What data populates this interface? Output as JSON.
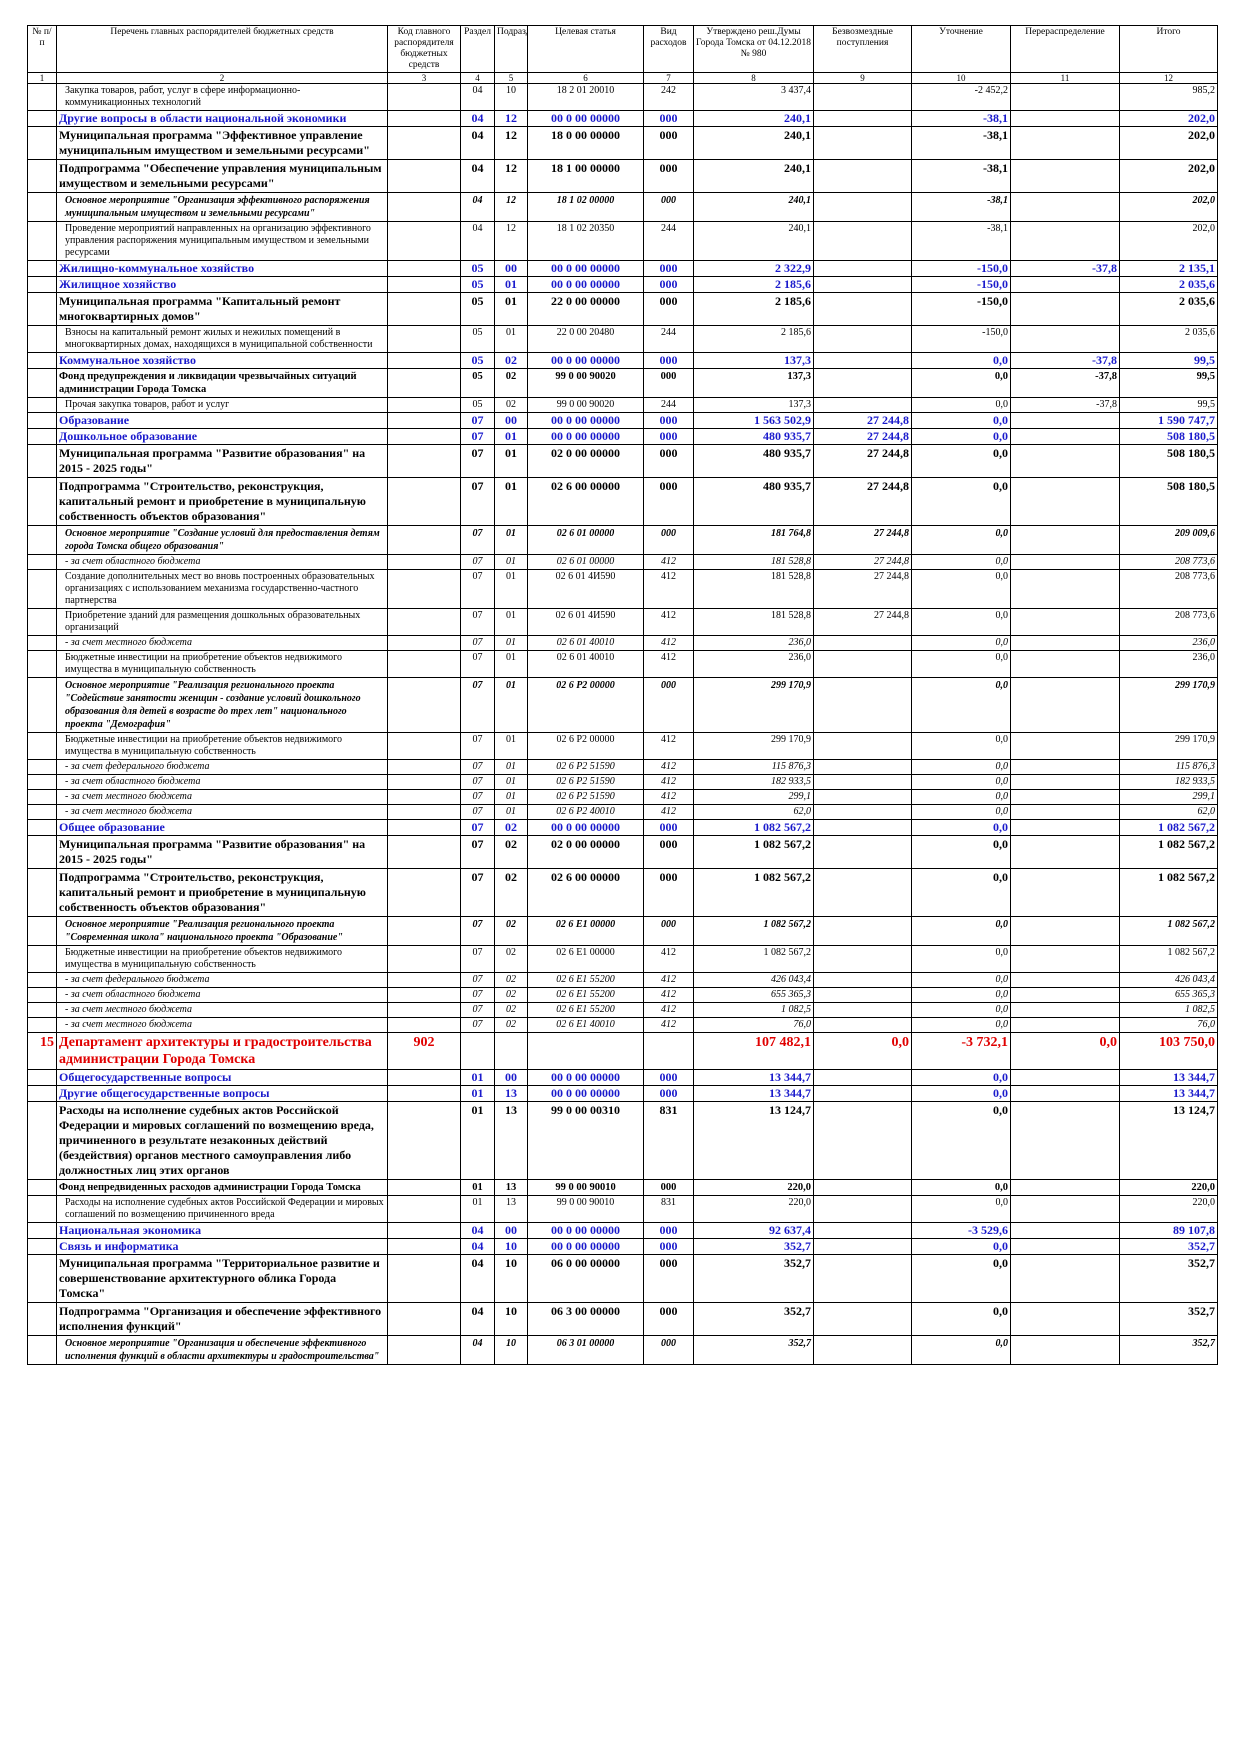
{
  "table": {
    "header": [
      "№ п/п",
      "Перечень главных распорядителей бюджетных средств",
      "Код главного распорядителя бюджетных средств",
      "Раздел",
      "Подраздел",
      "Целевая статья",
      "Вид расходов",
      "Утверждено реш.Думы Города Томска от 04.12.2018 № 980",
      "Безвозмездные поступления",
      "Уточнение",
      "Перераспределение",
      "Итого"
    ],
    "numbers": [
      1,
      2,
      3,
      4,
      5,
      6,
      7,
      8,
      9,
      10,
      11,
      12
    ],
    "rows": [
      {
        "style": "n",
        "cells": [
          null,
          "Закупка товаров, работ, услуг в сфере информационно-коммуникационных технологий",
          null,
          "04",
          "10",
          "18 2 01 20010",
          "242",
          "3 437,4",
          null,
          "-2 452,2",
          null,
          "985,2"
        ]
      },
      {
        "style": "s",
        "cells": [
          null,
          "Другие вопросы в области национальной экономики",
          null,
          "04",
          "12",
          "00 0 00 00000",
          "000",
          "240,1",
          null,
          "-38,1",
          null,
          "202,0"
        ]
      },
      {
        "style": "b",
        "cells": [
          null,
          "Муниципальная программа \"Эффективное управление муниципальным имуществом и земельными ресурсами\"",
          null,
          "04",
          "12",
          "18 0 00 00000",
          "000",
          "240,1",
          null,
          "-38,1",
          null,
          "202,0"
        ]
      },
      {
        "style": "b",
        "cells": [
          null,
          "Подпрограмма \"Обеспечение управления муниципальным имуществом и земельными ресурсами\"",
          null,
          "04",
          "12",
          "18 1 00 00000",
          "000",
          "240,1",
          null,
          "-38,1",
          null,
          "202,0"
        ]
      },
      {
        "style": "m",
        "cells": [
          null,
          "Основное мероприятие \"Организация эффективного распоряжения муниципальным имуществом и земельными ресурсами\"",
          null,
          "04",
          "12",
          "18 1 02 00000",
          "000",
          "240,1",
          null,
          "-38,1",
          null,
          "202,0"
        ]
      },
      {
        "style": "n",
        "cells": [
          null,
          "Проведение мероприятий направленных на организацию эффективного управления распоряжения муниципальным имуществом и земельными ресурсами",
          null,
          "04",
          "12",
          "18 1 02 20350",
          "244",
          "240,1",
          null,
          "-38,1",
          null,
          "202,0"
        ]
      },
      {
        "style": "s",
        "cells": [
          null,
          "Жилищно-коммунальное хозяйство",
          null,
          "05",
          "00",
          "00 0 00 00000",
          "000",
          "2 322,9",
          null,
          "-150,0",
          "-37,8",
          "2 135,1"
        ]
      },
      {
        "style": "s",
        "cells": [
          null,
          "Жилищное хозяйство",
          null,
          "05",
          "01",
          "00 0 00 00000",
          "000",
          "2 185,6",
          null,
          "-150,0",
          null,
          "2 035,6"
        ]
      },
      {
        "style": "b",
        "cells": [
          null,
          "Муниципальная программа \"Капитальный ремонт многоквартирных домов\"",
          null,
          "05",
          "01",
          "22 0 00 00000",
          "000",
          "2 185,6",
          null,
          "-150,0",
          null,
          "2 035,6"
        ]
      },
      {
        "style": "n",
        "cells": [
          null,
          "Взносы на капитальный ремонт жилых и нежилых помещений в многоквартирных домах, находящихся в муниципальной собственности",
          null,
          "05",
          "01",
          "22 0 00 20480",
          "244",
          "2 185,6",
          null,
          "-150,0",
          null,
          "2 035,6"
        ]
      },
      {
        "style": "s",
        "cells": [
          null,
          "Коммунальное хозяйство",
          null,
          "05",
          "02",
          "00 0 00 00000",
          "000",
          "137,3",
          null,
          "0,0",
          "-37,8",
          "99,5"
        ]
      },
      {
        "style": "bs",
        "cells": [
          null,
          "Фонд предупреждения и ликвидации чрезвычайных ситуаций администрации Города Томска",
          null,
          "05",
          "02",
          "99 0 00 90020",
          "000",
          "137,3",
          null,
          "0,0",
          "-37,8",
          "99,5"
        ]
      },
      {
        "style": "n",
        "cells": [
          null,
          "Прочая закупка товаров, работ и услуг",
          null,
          "05",
          "02",
          "99 0 00 90020",
          "244",
          "137,3",
          null,
          "0,0",
          "-37,8",
          "99,5"
        ]
      },
      {
        "style": "s",
        "cells": [
          null,
          "Образование",
          null,
          "07",
          "00",
          "00 0 00 00000",
          "000",
          "1 563 502,9",
          "27 244,8",
          "0,0",
          null,
          "1 590 747,7"
        ]
      },
      {
        "style": "s",
        "cells": [
          null,
          "Дошкольное образование",
          null,
          "07",
          "01",
          "00 0 00 00000",
          "000",
          "480 935,7",
          "27 244,8",
          "0,0",
          null,
          "508 180,5"
        ]
      },
      {
        "style": "b",
        "cells": [
          null,
          "Муниципальная программа \"Развитие образования\" на 2015 - 2025 годы\"",
          null,
          "07",
          "01",
          "02 0 00 00000",
          "000",
          "480 935,7",
          "27 244,8",
          "0,0",
          null,
          "508 180,5"
        ]
      },
      {
        "style": "b",
        "cells": [
          null,
          "Подпрограмма \"Строительство, реконструкция, капитальный ремонт и приобретение в муниципальную собственность объектов образования\"",
          null,
          "07",
          "01",
          "02 6 00 00000",
          "000",
          "480 935,7",
          "27 244,8",
          "0,0",
          null,
          "508 180,5"
        ]
      },
      {
        "style": "m",
        "cells": [
          null,
          "Основное мероприятие \"Создание условий для предоставления детям города Томска общего образования\"",
          null,
          "07",
          "01",
          "02 6 01 00000",
          "000",
          "181 764,8",
          "27 244,8",
          "0,0",
          null,
          "209 009,6"
        ]
      },
      {
        "style": "i",
        "cells": [
          null,
          "- за счет областного бюджета",
          null,
          "07",
          "01",
          "02 6 01 00000",
          "412",
          "181 528,8",
          "27 244,8",
          "0,0",
          null,
          "208 773,6"
        ]
      },
      {
        "style": "n",
        "cells": [
          null,
          "Создание дополнительных мест во вновь построенных образовательных организациях с использованием механизма государственно-частного партнерства",
          null,
          "07",
          "01",
          "02 6 01 4И590",
          "412",
          "181 528,8",
          "27 244,8",
          "0,0",
          null,
          "208 773,6"
        ]
      },
      {
        "style": "n",
        "cells": [
          null,
          "Приобретение зданий для размещения дошкольных образовательных организаций",
          null,
          "07",
          "01",
          "02 6 01 4И590",
          "412",
          "181 528,8",
          "27 244,8",
          "0,0",
          null,
          "208 773,6"
        ]
      },
      {
        "style": "i",
        "cells": [
          null,
          "- за счет местного бюджета",
          null,
          "07",
          "01",
          "02 6 01 40010",
          "412",
          "236,0",
          null,
          "0,0",
          null,
          "236,0"
        ]
      },
      {
        "style": "n",
        "cells": [
          null,
          "Бюджетные инвестиции на приобретение объектов недвижимого имущества в муниципальную собственность",
          null,
          "07",
          "01",
          "02 6 01 40010",
          "412",
          "236,0",
          null,
          "0,0",
          null,
          "236,0"
        ]
      },
      {
        "style": "m",
        "cells": [
          null,
          "Основное мероприятие \"Реализация регионального проекта \"Содействие занятости женщин - создание условий дошкольного образования для детей в возрасте до трех лет\" национального проекта \"Демография\"",
          null,
          "07",
          "01",
          "02 6 P2 00000",
          "000",
          "299 170,9",
          null,
          "0,0",
          null,
          "299 170,9"
        ]
      },
      {
        "style": "n",
        "cells": [
          null,
          "Бюджетные инвестиции на приобретение объектов недвижимого имущества в муниципальную собственность",
          null,
          "07",
          "01",
          "02 6 P2 00000",
          "412",
          "299 170,9",
          null,
          "0,0",
          null,
          "299 170,9"
        ]
      },
      {
        "style": "i",
        "cells": [
          null,
          "- за счет федерального бюджета",
          null,
          "07",
          "01",
          "02 6 P2 51590",
          "412",
          "115 876,3",
          null,
          "0,0",
          null,
          "115 876,3"
        ]
      },
      {
        "style": "i",
        "cells": [
          null,
          "- за счет областного бюджета",
          null,
          "07",
          "01",
          "02 6 P2 51590",
          "412",
          "182 933,5",
          null,
          "0,0",
          null,
          "182 933,5"
        ]
      },
      {
        "style": "i",
        "cells": [
          null,
          "- за счет местного бюджета",
          null,
          "07",
          "01",
          "02 6 P2 51590",
          "412",
          "299,1",
          null,
          "0,0",
          null,
          "299,1"
        ]
      },
      {
        "style": "i",
        "cells": [
          null,
          "- за счет местного бюджета",
          null,
          "07",
          "01",
          "02 6 P2 40010",
          "412",
          "62,0",
          null,
          "0,0",
          null,
          "62,0"
        ]
      },
      {
        "style": "s",
        "cells": [
          null,
          "Общее образование",
          null,
          "07",
          "02",
          "00 0 00 00000",
          "000",
          "1 082 567,2",
          null,
          "0,0",
          null,
          "1 082 567,2"
        ]
      },
      {
        "style": "b",
        "cells": [
          null,
          "Муниципальная программа \"Развитие образования\" на 2015 - 2025 годы\"",
          null,
          "07",
          "02",
          "02 0 00 00000",
          "000",
          "1 082 567,2",
          null,
          "0,0",
          null,
          "1 082 567,2"
        ]
      },
      {
        "style": "b",
        "cells": [
          null,
          "Подпрограмма \"Строительство, реконструкция, капитальный ремонт и приобретение в муниципальную собственность объектов образования\"",
          null,
          "07",
          "02",
          "02 6 00 00000",
          "000",
          "1 082 567,2",
          null,
          "0,0",
          null,
          "1 082 567,2"
        ]
      },
      {
        "style": "m",
        "cells": [
          null,
          "Основное мероприятие \"Реализация регионального проекта \"Современная школа\" национального проекта \"Образование\"",
          null,
          "07",
          "02",
          "02 6 E1 00000",
          "000",
          "1 082 567,2",
          null,
          "0,0",
          null,
          "1 082 567,2"
        ]
      },
      {
        "style": "n",
        "cells": [
          null,
          "Бюджетные инвестиции на приобретение объектов недвижимого имущества в муниципальную собственность",
          null,
          "07",
          "02",
          "02 6 E1 00000",
          "412",
          "1 082 567,2",
          null,
          "0,0",
          null,
          "1 082 567,2"
        ]
      },
      {
        "style": "i",
        "cells": [
          null,
          "- за счет федерального бюджета",
          null,
          "07",
          "02",
          "02 6 E1 55200",
          "412",
          "426 043,4",
          null,
          "0,0",
          null,
          "426 043,4"
        ]
      },
      {
        "style": "i",
        "cells": [
          null,
          "- за счет областного бюджета",
          null,
          "07",
          "02",
          "02 6 E1 55200",
          "412",
          "655 365,3",
          null,
          "0,0",
          null,
          "655 365,3"
        ]
      },
      {
        "style": "i",
        "cells": [
          null,
          "- за счет местного бюджета",
          null,
          "07",
          "02",
          "02 6 E1 55200",
          "412",
          "1 082,5",
          null,
          "0,0",
          null,
          "1 082,5"
        ]
      },
      {
        "style": "i",
        "cells": [
          null,
          "- за счет местного бюджета",
          null,
          "07",
          "02",
          "02 6 E1 40010",
          "412",
          "76,0",
          null,
          "0,0",
          null,
          "76,0"
        ]
      },
      {
        "style": "d",
        "cells": [
          "15",
          "Департамент архитектуры и градостроительства администрации Города Томска",
          "902",
          null,
          null,
          null,
          null,
          "107 482,1",
          "0,0",
          "-3 732,1",
          "0,0",
          "103 750,0"
        ]
      },
      {
        "style": "s",
        "cells": [
          null,
          "Общегосударственные вопросы",
          null,
          "01",
          "00",
          "00 0 00 00000",
          "000",
          "13 344,7",
          null,
          "0,0",
          null,
          "13 344,7"
        ]
      },
      {
        "style": "s",
        "cells": [
          null,
          "Другие общегосударственные вопросы",
          null,
          "01",
          "13",
          "00 0 00 00000",
          "000",
          "13 344,7",
          null,
          "0,0",
          null,
          "13 344,7"
        ]
      },
      {
        "style": "b",
        "cells": [
          null,
          "Расходы на исполнение судебных актов Российской Федерации и мировых соглашений по возмещению вреда, причиненного в результате незаконных действий (бездействия) органов местного самоуправления либо должностных лиц этих органов",
          null,
          "01",
          "13",
          "99 0 00 00310",
          "831",
          "13 124,7",
          null,
          "0,0",
          null,
          "13 124,7"
        ]
      },
      {
        "style": "bs",
        "cells": [
          null,
          "Фонд непредвиденных расходов администрации Города Томска",
          null,
          "01",
          "13",
          "99 0 00 90010",
          "000",
          "220,0",
          null,
          "0,0",
          null,
          "220,0"
        ]
      },
      {
        "style": "n",
        "cells": [
          null,
          "Расходы на исполнение судебных актов Российской Федерации и мировых соглашений по возмещению причиненного вреда",
          null,
          "01",
          "13",
          "99 0 00 90010",
          "831",
          "220,0",
          null,
          "0,0",
          null,
          "220,0"
        ]
      },
      {
        "style": "s",
        "cells": [
          null,
          "Национальная экономика",
          null,
          "04",
          "00",
          "00 0 00 00000",
          "000",
          "92 637,4",
          null,
          "-3 529,6",
          null,
          "89 107,8"
        ]
      },
      {
        "style": "s",
        "cells": [
          null,
          "Связь и информатика",
          null,
          "04",
          "10",
          "00 0 00 00000",
          "000",
          "352,7",
          null,
          "0,0",
          null,
          "352,7"
        ]
      },
      {
        "style": "b",
        "cells": [
          null,
          "Муниципальная программа \"Территориальное развитие и совершенствование архитектурного облика Города Томска\"",
          null,
          "04",
          "10",
          "06 0 00 00000",
          "000",
          "352,7",
          null,
          "0,0",
          null,
          "352,7"
        ]
      },
      {
        "style": "b",
        "cells": [
          null,
          "Подпрограмма \"Организация и обеспечение эффективного исполнения функций\"",
          null,
          "04",
          "10",
          "06 3 00 00000",
          "000",
          "352,7",
          null,
          "0,0",
          null,
          "352,7"
        ]
      },
      {
        "style": "m",
        "cells": [
          null,
          "Основное мероприятие \"Организация и обеспечение эффективного исполнения функций в области архитектуры и градостроительства\"",
          null,
          "04",
          "10",
          "06 3 01 00000",
          "000",
          "352,7",
          null,
          "0,0",
          null,
          "352,7"
        ]
      }
    ]
  }
}
